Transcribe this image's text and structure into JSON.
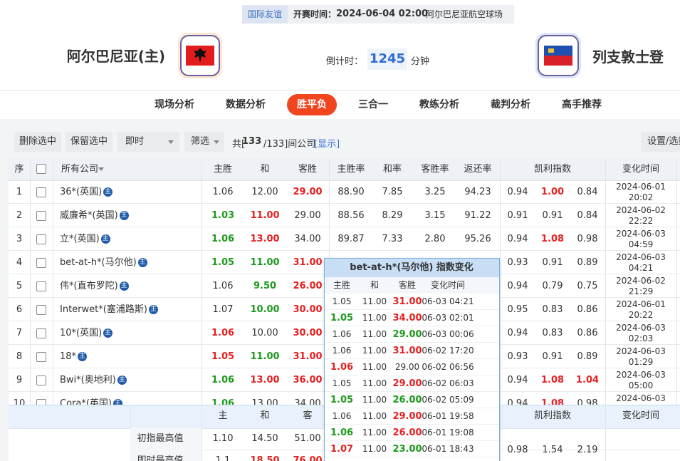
{
  "header": {
    "match_type": "国际友谊",
    "kickoff_label": "开赛时间：",
    "kickoff": "2024-06-04 02:00",
    "venue": "阿尔巴尼亚航空球场",
    "home": "阿尔巴尼亚(主)",
    "away": "列支敦士登",
    "countdown_label": "倒计时：",
    "countdown": "1245",
    "countdown_unit": "分钟"
  },
  "tabs": {
    "items": [
      "现场分析",
      "数据分析",
      "胜平负",
      "三合一",
      "教练分析",
      "裁判分析",
      "高手推荐"
    ],
    "active": 2
  },
  "toolbar": {
    "buttons": [
      "删除选中",
      "保留选中"
    ],
    "mode": "即时",
    "filter": "筛选",
    "count_prefix": "共[",
    "count_current": "133",
    "count_rest": "/133]间公司",
    "show_link": "[显示]",
    "settings": "设置/选择"
  },
  "table": {
    "headers": {
      "no": "序",
      "company": "所有公司",
      "odds": [
        "主胜",
        "和",
        "客胜"
      ],
      "rates": [
        "主胜率",
        "和率",
        "客胜率",
        "返还率"
      ],
      "kelly": "凯利指数",
      "time": "变化时间"
    },
    "home_icon": "主",
    "rows": [
      {
        "no": "1",
        "company": "36*(英国)",
        "home": true,
        "odds": [
          "1.06",
          "12.00",
          "29.00"
        ],
        "odds_colors": [
          null,
          null,
          "red"
        ],
        "rates": [
          "88.90",
          "7.85",
          "3.25",
          "94.23"
        ],
        "kelly": [
          "0.94",
          "1.00",
          "0.84"
        ],
        "kelly_colors": [
          null,
          "red",
          null
        ],
        "time": [
          "2024-06-01",
          "20:02"
        ]
      },
      {
        "no": "2",
        "company": "威廉希*(英国)",
        "home": true,
        "odds": [
          "1.03",
          "11.00",
          "29.00"
        ],
        "odds_colors": [
          "green",
          "red",
          null
        ],
        "rates": [
          "88.56",
          "8.29",
          "3.15",
          "91.22"
        ],
        "kelly": [
          "0.91",
          "0.91",
          "0.84"
        ],
        "kelly_colors": [
          null,
          null,
          null
        ],
        "time": [
          "2024-06-02",
          "22:22"
        ]
      },
      {
        "no": "3",
        "company": "立*(英国)",
        "home": true,
        "odds": [
          "1.06",
          "13.00",
          "34.00"
        ],
        "odds_colors": [
          "green",
          "red",
          null
        ],
        "rates": [
          "89.87",
          "7.33",
          "2.80",
          "95.26"
        ],
        "kelly": [
          "0.94",
          "1.08",
          "0.98"
        ],
        "kelly_colors": [
          null,
          "red",
          null
        ],
        "time": [
          "2024-06-03",
          "04:59"
        ]
      },
      {
        "no": "4",
        "company": "bet-at-h*(马尔他)",
        "home": true,
        "odds": [
          "1.05",
          "11.00",
          "31.00"
        ],
        "odds_colors": [
          "green",
          "green",
          "red"
        ],
        "kelly": [
          "0.93",
          "0.91",
          "0.89"
        ],
        "kelly_colors": [
          null,
          null,
          null
        ],
        "time": [
          "2024-06-03",
          "04:21"
        ]
      },
      {
        "no": "5",
        "company": "伟*(直布罗陀)",
        "home": true,
        "odds": [
          "1.06",
          "9.50",
          "26.00"
        ],
        "odds_colors": [
          null,
          "green",
          "red"
        ],
        "kelly": [
          "0.94",
          "0.79",
          "0.75"
        ],
        "kelly_colors": [
          null,
          null,
          null
        ],
        "time": [
          "2024-06-02",
          "21:29"
        ]
      },
      {
        "no": "6",
        "company": "Interwet*(塞浦路斯)",
        "home": true,
        "odds": [
          "1.07",
          "10.00",
          "30.00"
        ],
        "odds_colors": [
          null,
          "green",
          "red"
        ],
        "kelly": [
          "0.95",
          "0.83",
          "0.86"
        ],
        "kelly_colors": [
          null,
          null,
          null
        ],
        "time": [
          "2024-06-01",
          "20:22"
        ]
      },
      {
        "no": "7",
        "company": "10*(英国)",
        "home": true,
        "odds": [
          "1.06",
          "10.00",
          "30.00"
        ],
        "odds_colors": [
          "red",
          null,
          "red"
        ],
        "kelly": [
          "0.94",
          "0.83",
          "0.86"
        ],
        "kelly_colors": [
          null,
          null,
          null
        ],
        "time": [
          "2024-06-03",
          "02:03"
        ]
      },
      {
        "no": "8",
        "company": "18*",
        "home": true,
        "odds": [
          "1.05",
          "11.00",
          "31.00"
        ],
        "odds_colors": [
          "red",
          "green",
          "red"
        ],
        "kelly": [
          "0.93",
          "0.91",
          "0.89"
        ],
        "kelly_colors": [
          null,
          null,
          null
        ],
        "time": [
          "2024-06-03",
          "01:29"
        ]
      },
      {
        "no": "9",
        "company": "Bwi*(奥地利)",
        "home": true,
        "odds": [
          "1.06",
          "13.00",
          "36.00"
        ],
        "odds_colors": [
          "green",
          "red",
          "red"
        ],
        "kelly": [
          "0.94",
          "1.08",
          "1.04"
        ],
        "kelly_colors": [
          null,
          "red",
          "red"
        ],
        "time": [
          "2024-06-03",
          "05:00"
        ]
      },
      {
        "no": "10",
        "company": "Cora*(英国)",
        "home": true,
        "odds": [
          "1.06",
          "13.00",
          "34.00"
        ],
        "odds_colors": [
          "green",
          null,
          null
        ],
        "kelly": [
          "0.94",
          "1.08",
          "0.98"
        ],
        "kelly_colors": [
          null,
          "red",
          null
        ],
        "time": [
          "2024-06-03"
        ]
      }
    ]
  },
  "summary": {
    "headers": [
      "主",
      "和",
      "客"
    ],
    "kelly_header": "凯利指数",
    "time_header": "变化时间",
    "rows": [
      {
        "label": "初指最高值",
        "odds": [
          "1.10",
          "14.50",
          "51.00"
        ],
        "odds_colors": [
          null,
          null,
          null
        ]
      },
      {
        "label": "即时最高值",
        "odds": [
          "1.1",
          "18.50",
          "76.00"
        ],
        "odds_colors": [
          null,
          "red",
          "red"
        ]
      }
    ],
    "kelly": [
      "0.98",
      "1.54",
      "2.19"
    ]
  },
  "popup": {
    "title": "bet-at-h*(马尔他) 指数变化",
    "headers": [
      "主胜",
      "和",
      "客胜",
      "变化时间"
    ],
    "rows": [
      {
        "odds": [
          "1.05",
          "11.00",
          "31.00"
        ],
        "colors": [
          null,
          null,
          "red"
        ],
        "time": "06-03 04:21"
      },
      {
        "odds": [
          "1.05",
          "11.00",
          "34.00"
        ],
        "colors": [
          "green",
          null,
          "red"
        ],
        "time": "06-03 02:01"
      },
      {
        "odds": [
          "1.06",
          "11.00",
          "29.00"
        ],
        "colors": [
          null,
          null,
          "green"
        ],
        "time": "06-03 00:06"
      },
      {
        "odds": [
          "1.06",
          "11.00",
          "31.00"
        ],
        "colors": [
          null,
          null,
          "red"
        ],
        "time": "06-02 17:20"
      },
      {
        "odds": [
          "1.06",
          "11.00",
          "29.00"
        ],
        "colors": [
          "red",
          null,
          null
        ],
        "time": "06-02 06:56"
      },
      {
        "odds": [
          "1.05",
          "11.00",
          "29.00"
        ],
        "colors": [
          null,
          null,
          "red"
        ],
        "time": "06-02 06:03"
      },
      {
        "odds": [
          "1.05",
          "11.00",
          "26.00"
        ],
        "colors": [
          "green",
          null,
          "green"
        ],
        "time": "06-02 05:09"
      },
      {
        "odds": [
          "1.06",
          "11.00",
          "29.00"
        ],
        "colors": [
          null,
          null,
          "red"
        ],
        "time": "06-01 19:58"
      },
      {
        "odds": [
          "1.06",
          "11.00",
          "26.00"
        ],
        "colors": [
          "green",
          null,
          "red"
        ],
        "time": "06-01 19:08"
      },
      {
        "odds": [
          "1.07",
          "11.00",
          "23.00"
        ],
        "colors": [
          "red",
          null,
          "green"
        ],
        "time": "06-01 18:43"
      }
    ]
  }
}
